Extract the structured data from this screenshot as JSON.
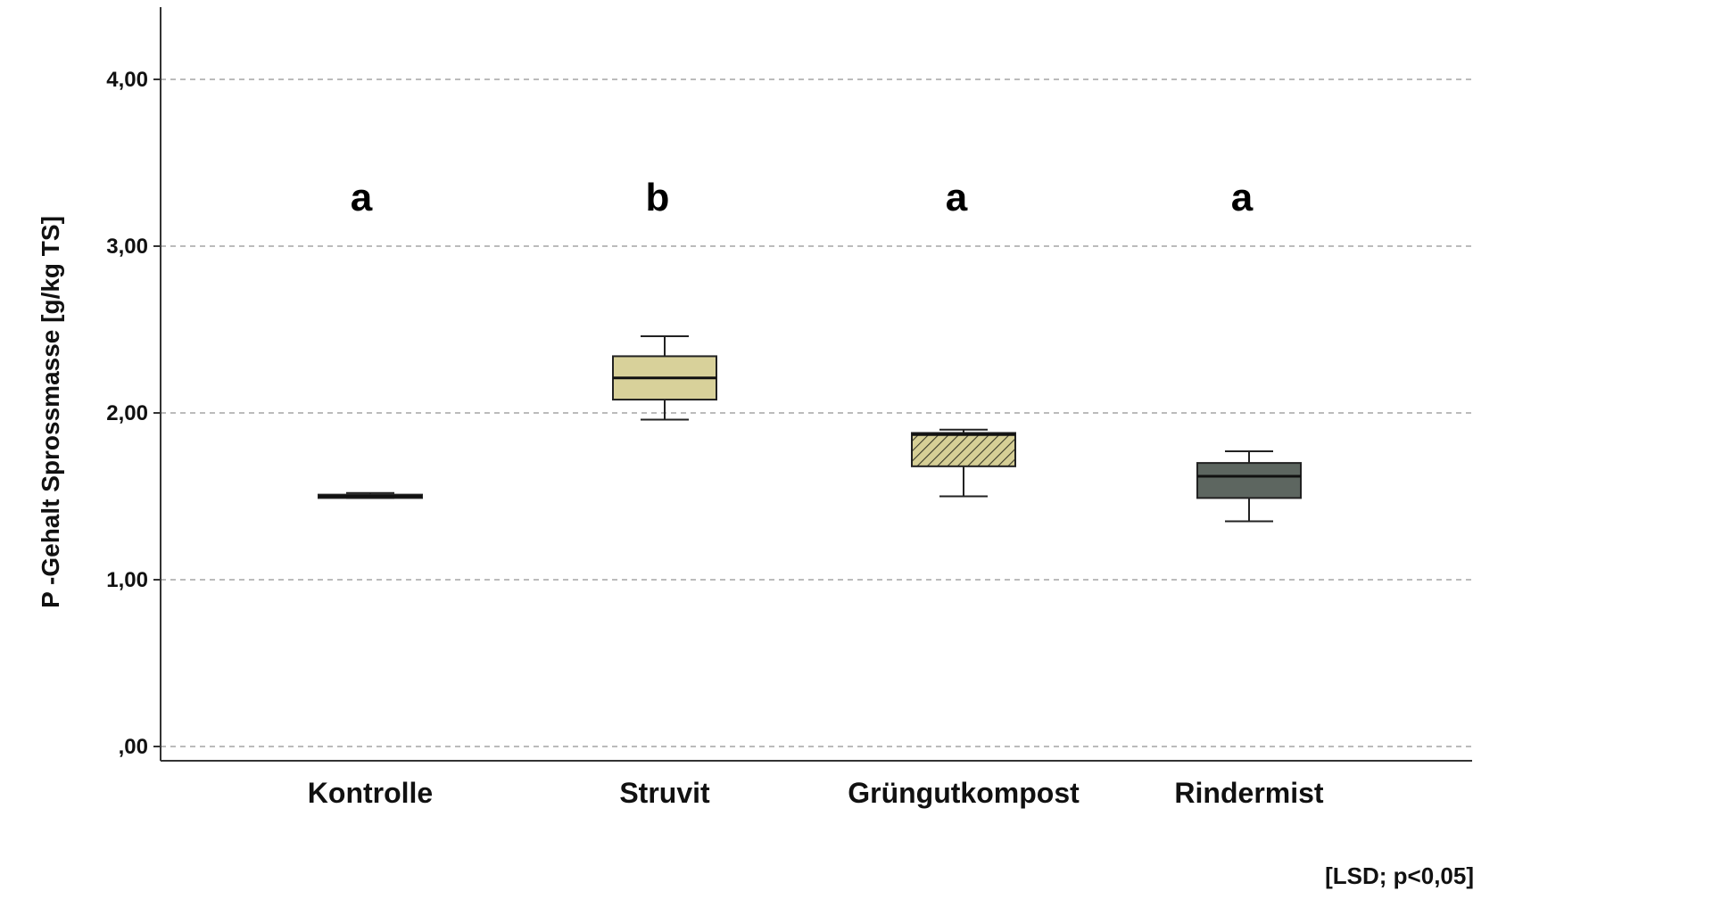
{
  "chart_data": {
    "type": "boxplot",
    "title": "",
    "xlabel": "",
    "ylabel": "P -Gehalt Sprossmasse [g/kg TS]",
    "ylim": [
      0,
      4.4
    ],
    "yticks": [
      0,
      1,
      2,
      3,
      4
    ],
    "ytick_labels": [
      ",00",
      "1,00",
      "2,00",
      "3,00",
      "4,00"
    ],
    "grid": true,
    "categories": [
      "Kontrolle",
      "Struvit",
      "Grüngutkompost",
      "Rindermist"
    ],
    "boxes": [
      {
        "name": "Kontrolle",
        "min": 1.49,
        "q1": 1.49,
        "median": 1.5,
        "q3": 1.51,
        "max": 1.52,
        "letter": "a",
        "fill": "#4a4a4a",
        "hatch": false
      },
      {
        "name": "Struvit",
        "min": 1.96,
        "q1": 2.08,
        "median": 2.21,
        "q3": 2.34,
        "max": 2.46,
        "letter": "b",
        "fill": "#d8d19a",
        "hatch": false
      },
      {
        "name": "Grüngutkompost",
        "min": 1.5,
        "q1": 1.68,
        "median": 1.87,
        "q3": 1.88,
        "max": 1.9,
        "letter": "a",
        "fill": "#d6cf96",
        "hatch": true
      },
      {
        "name": "Rindermist",
        "min": 1.35,
        "q1": 1.49,
        "median": 1.62,
        "q3": 1.7,
        "max": 1.77,
        "letter": "a",
        "fill": "#5d6660",
        "hatch": false
      }
    ],
    "footnote": "[LSD; p<0,05]"
  },
  "colors": {
    "axis": "#333333",
    "grid": "#bbbbbb",
    "outline": "#222222"
  }
}
